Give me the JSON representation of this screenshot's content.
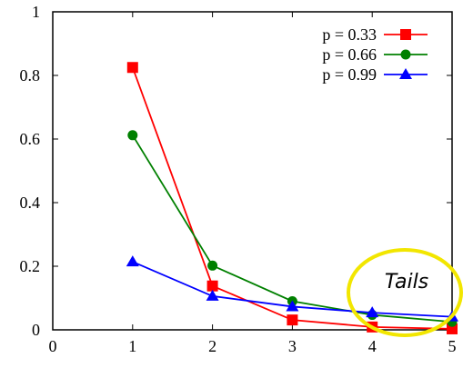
{
  "chart_data": {
    "type": "line",
    "x": [
      1,
      2,
      3,
      4,
      5
    ],
    "xlim": [
      0,
      5
    ],
    "ylim": [
      0,
      1
    ],
    "x_ticks": [
      "0",
      "1",
      "2",
      "3",
      "4",
      "5"
    ],
    "y_ticks": [
      "0",
      "0.2",
      "0.4",
      "0.6",
      "0.8",
      "1"
    ],
    "series": [
      {
        "name": "p = 0.33",
        "color": "#ff0000",
        "marker": "square",
        "values": [
          0.825,
          0.138,
          0.031,
          0.009,
          0.003
        ]
      },
      {
        "name": "p = 0.66",
        "color": "#008000",
        "marker": "circle",
        "values": [
          0.612,
          0.202,
          0.09,
          0.047,
          0.025
        ]
      },
      {
        "name": "p = 0.99",
        "color": "#0000ff",
        "marker": "triangle",
        "values": [
          0.214,
          0.106,
          0.073,
          0.054,
          0.041
        ]
      }
    ],
    "legend_position": "top-right",
    "grid": false,
    "annotation": {
      "text": "Tails",
      "color": "#f2e600",
      "shape": "ellipse"
    }
  }
}
